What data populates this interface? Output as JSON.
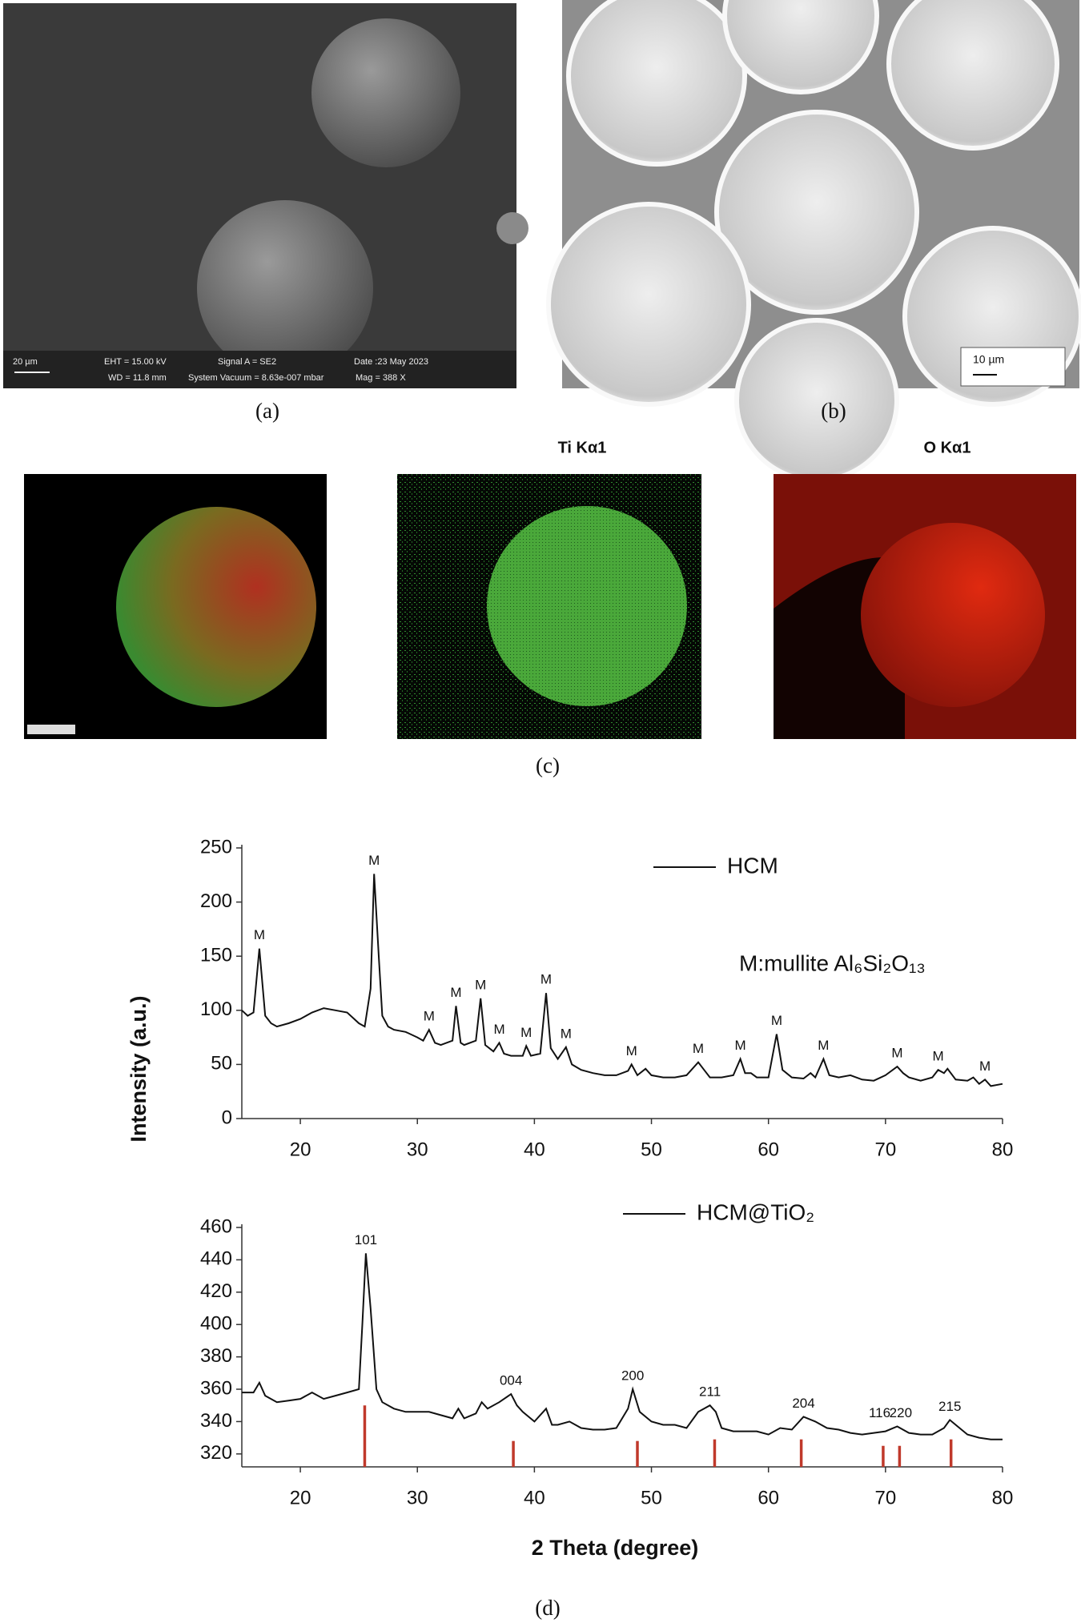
{
  "panels": {
    "a": {
      "label": "(a)",
      "scale_bar": "20 µm",
      "info": [
        "EHT = 15.00 kV",
        "WD = 11.8 mm",
        "Signal A = SE2",
        "System Vacuum = 8.63e-007 mbar",
        "Date :23 May 2023",
        "Mag = 388 X"
      ]
    },
    "b": {
      "label": "(b)",
      "scale_bar": "10 µm"
    },
    "c": {
      "label": "(c)",
      "maps": [
        "Ti Kα1",
        "O Kα1"
      ]
    },
    "d": {
      "label": "(d)"
    }
  },
  "chart_data": [
    {
      "type": "line",
      "ylabel": "Intensity (a.u.)",
      "xlim": [
        15,
        80
      ],
      "ylim": [
        0,
        250
      ],
      "xticks": [
        20,
        30,
        40,
        50,
        60,
        70,
        80
      ],
      "yticks": [
        0,
        50,
        100,
        150,
        200,
        250
      ],
      "annotation": "M:mullite Al₆Si₂O₁₃",
      "x": [
        15,
        15.5,
        16,
        16.5,
        17,
        17.5,
        18,
        19,
        20,
        21,
        22,
        23,
        24,
        25,
        25.5,
        26,
        26.3,
        26.7,
        27,
        27.5,
        28,
        29,
        30,
        30.5,
        31,
        31.5,
        32,
        33,
        33.3,
        33.7,
        34,
        35,
        35.4,
        35.8,
        36.5,
        37,
        37.4,
        38,
        39,
        39.3,
        39.7,
        40.5,
        41,
        41.4,
        42,
        42.7,
        43.2,
        44,
        45,
        46,
        47,
        48,
        48.3,
        48.8,
        49.5,
        50,
        51,
        52,
        53,
        54,
        54.5,
        55,
        56,
        57,
        57.6,
        58,
        58.5,
        59,
        60,
        60.7,
        61.2,
        62,
        63,
        63.6,
        64,
        64.7,
        65.2,
        66,
        67,
        68,
        69,
        70,
        71,
        71.5,
        72,
        73,
        74,
        74.5,
        75,
        75.3,
        76,
        77,
        77.5,
        78,
        78.5,
        79,
        80
      ],
      "series": [
        {
          "name": "HCM",
          "color": "#111111",
          "values": [
            100,
            95,
            98,
            157,
            95,
            88,
            85,
            88,
            92,
            98,
            102,
            100,
            98,
            88,
            85,
            120,
            226,
            150,
            95,
            85,
            82,
            80,
            75,
            72,
            82,
            70,
            68,
            72,
            104,
            70,
            68,
            72,
            111,
            68,
            62,
            70,
            60,
            58,
            58,
            67,
            58,
            60,
            116,
            65,
            55,
            66,
            50,
            45,
            42,
            40,
            40,
            44,
            50,
            40,
            46,
            40,
            38,
            38,
            40,
            52,
            45,
            38,
            38,
            40,
            55,
            42,
            42,
            38,
            38,
            78,
            45,
            38,
            37,
            42,
            38,
            55,
            40,
            38,
            40,
            36,
            35,
            40,
            48,
            42,
            38,
            35,
            38,
            45,
            42,
            46,
            36,
            35,
            38,
            32,
            36,
            30,
            32
          ]
        }
      ],
      "annotations": [
        {
          "text": "M",
          "x": 16.5,
          "y": 157
        },
        {
          "text": "M",
          "x": 26.3,
          "y": 226
        },
        {
          "text": "M",
          "x": 31,
          "y": 82
        },
        {
          "text": "M",
          "x": 33.3,
          "y": 104
        },
        {
          "text": "M",
          "x": 35.4,
          "y": 111
        },
        {
          "text": "M",
          "x": 37,
          "y": 70
        },
        {
          "text": "M",
          "x": 39.3,
          "y": 67
        },
        {
          "text": "M",
          "x": 41,
          "y": 116
        },
        {
          "text": "M",
          "x": 42.7,
          "y": 66
        },
        {
          "text": "M",
          "x": 48.3,
          "y": 50
        },
        {
          "text": "M",
          "x": 54,
          "y": 52
        },
        {
          "text": "M",
          "x": 57.6,
          "y": 55
        },
        {
          "text": "M",
          "x": 60.7,
          "y": 78
        },
        {
          "text": "M",
          "x": 64.7,
          "y": 55
        },
        {
          "text": "M",
          "x": 71,
          "y": 48
        },
        {
          "text": "M",
          "x": 74.5,
          "y": 45
        },
        {
          "text": "M",
          "x": 78.5,
          "y": 36
        }
      ]
    },
    {
      "type": "line",
      "xlabel": "2 Theta (degree)",
      "xlim": [
        15,
        80
      ],
      "ylim": [
        312,
        460
      ],
      "xticks": [
        20,
        30,
        40,
        50,
        60,
        70,
        80
      ],
      "yticks": [
        320,
        340,
        360,
        380,
        400,
        420,
        440,
        460
      ],
      "x": [
        15,
        16,
        16.5,
        17,
        18,
        19,
        20,
        21,
        22,
        23,
        24,
        25,
        25.3,
        25.6,
        26,
        26.5,
        27,
        28,
        29,
        30,
        31,
        32,
        33,
        33.5,
        34,
        35,
        35.5,
        36,
        37,
        38,
        38.5,
        39,
        40,
        41,
        41.5,
        42,
        43,
        44,
        45,
        46,
        47,
        48,
        48.4,
        49,
        50,
        51,
        52,
        53,
        54,
        54.5,
        55,
        55.5,
        56,
        57,
        58,
        59,
        60,
        61,
        62,
        63,
        64,
        65,
        66,
        67,
        68,
        69,
        70,
        71,
        72,
        73,
        74,
        75,
        75.5,
        76,
        77,
        78,
        79,
        80
      ],
      "series": [
        {
          "name": "HCM@TiO₂",
          "color": "#111111",
          "values": [
            358,
            358,
            364,
            356,
            352,
            353,
            354,
            358,
            354,
            356,
            358,
            360,
            400,
            444,
            410,
            360,
            352,
            348,
            346,
            346,
            346,
            344,
            342,
            348,
            342,
            345,
            352,
            348,
            352,
            357,
            350,
            346,
            340,
            348,
            338,
            338,
            340,
            336,
            335,
            335,
            336,
            348,
            360,
            346,
            340,
            338,
            338,
            336,
            346,
            348,
            350,
            346,
            336,
            334,
            334,
            334,
            332,
            336,
            335,
            343,
            340,
            336,
            335,
            333,
            332,
            333,
            334,
            337,
            333,
            332,
            332,
            336,
            341,
            338,
            332,
            330,
            329,
            329
          ]
        }
      ],
      "reference_lines": {
        "color": "#c0392b",
        "x": [
          25.5,
          38.2,
          48.8,
          55.4,
          62.8,
          69.8,
          71.2,
          75.6
        ],
        "values": [
          350,
          328,
          328,
          329,
          329,
          325,
          325,
          329
        ]
      },
      "annotations": [
        {
          "text": "101",
          "x": 25.6,
          "y": 444
        },
        {
          "text": "004",
          "x": 38,
          "y": 357
        },
        {
          "text": "200",
          "x": 48.4,
          "y": 360
        },
        {
          "text": "211",
          "x": 55,
          "y": 350
        },
        {
          "text": "204",
          "x": 63,
          "y": 343
        },
        {
          "text": "116",
          "x": 69.5,
          "y": 337
        },
        {
          "text": "220",
          "x": 71.3,
          "y": 337
        },
        {
          "text": "215",
          "x": 75.5,
          "y": 341
        }
      ]
    }
  ]
}
